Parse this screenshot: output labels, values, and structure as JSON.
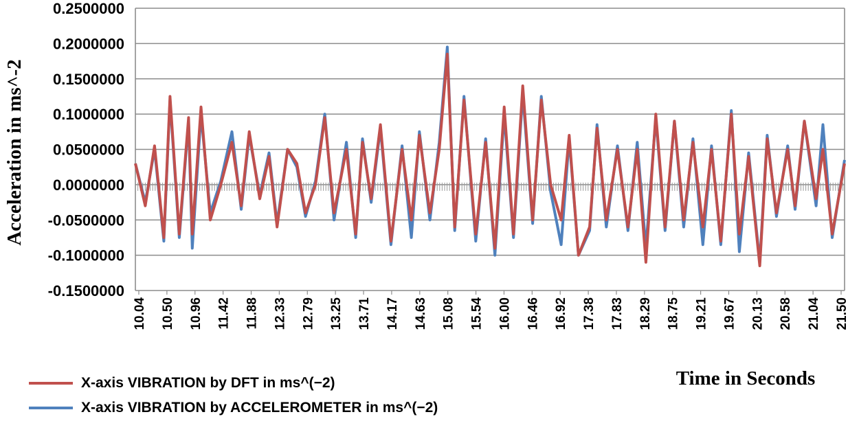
{
  "chart_data": {
    "type": "line",
    "xlabel": "Time in Seconds",
    "ylabel": "Acceleration in ms^-2",
    "ylim": [
      -0.15,
      0.25
    ],
    "xlim": [
      10.04,
      21.5
    ],
    "grid": "horizontal",
    "y_ticks": [
      "0.2500000",
      "0.2000000",
      "0.1500000",
      "0.1000000",
      "0.0500000",
      "0.0000000",
      "-0.0500000",
      "-0.1000000",
      "-0.1500000"
    ],
    "x_ticks": [
      "10.04",
      "10.50",
      "10.96",
      "11.42",
      "11.88",
      "12.33",
      "12.79",
      "13.25",
      "13.71",
      "14.17",
      "14.63",
      "15.08",
      "15.54",
      "16.00",
      "16.46",
      "16.92",
      "17.38",
      "17.83",
      "18.29",
      "18.75",
      "19.21",
      "19.67",
      "20.13",
      "20.58",
      "21.04",
      "21.50"
    ],
    "x": [
      10.04,
      10.2,
      10.35,
      10.5,
      10.6,
      10.75,
      10.9,
      10.96,
      11.1,
      11.25,
      11.42,
      11.6,
      11.75,
      11.88,
      12.05,
      12.2,
      12.33,
      12.5,
      12.65,
      12.79,
      12.95,
      13.1,
      13.25,
      13.45,
      13.6,
      13.71,
      13.85,
      14.0,
      14.17,
      14.35,
      14.5,
      14.63,
      14.8,
      14.95,
      15.08,
      15.2,
      15.35,
      15.54,
      15.7,
      15.85,
      16.0,
      16.15,
      16.3,
      16.46,
      16.6,
      16.75,
      16.92,
      17.05,
      17.2,
      17.38,
      17.5,
      17.65,
      17.83,
      18.0,
      18.15,
      18.29,
      18.45,
      18.6,
      18.75,
      18.9,
      19.05,
      19.21,
      19.35,
      19.5,
      19.67,
      19.8,
      19.95,
      20.13,
      20.25,
      20.4,
      20.58,
      20.7,
      20.85,
      21.04,
      21.15,
      21.3,
      21.5
    ],
    "series": [
      {
        "name": "X-axis VIBRATION by DFT in  ms^(−2)",
        "color": "#c0504d",
        "values": [
          0.03,
          -0.03,
          0.055,
          -0.075,
          0.125,
          -0.07,
          0.095,
          -0.07,
          0.11,
          -0.05,
          0.0,
          0.06,
          -0.03,
          0.075,
          -0.02,
          0.04,
          -0.06,
          0.05,
          0.03,
          -0.04,
          0.0,
          0.095,
          -0.04,
          0.05,
          -0.07,
          0.06,
          -0.02,
          0.085,
          -0.08,
          0.05,
          -0.05,
          0.07,
          -0.04,
          0.05,
          0.185,
          -0.06,
          0.12,
          -0.07,
          0.06,
          -0.09,
          0.11,
          -0.07,
          0.14,
          -0.05,
          0.12,
          0.0,
          -0.05,
          0.07,
          -0.1,
          -0.06,
          0.08,
          -0.05,
          0.05,
          -0.06,
          0.05,
          -0.11,
          0.1,
          -0.06,
          0.09,
          -0.05,
          0.06,
          -0.06,
          0.05,
          -0.08,
          0.1,
          -0.07,
          0.04,
          -0.115,
          0.065,
          -0.04,
          0.05,
          -0.03,
          0.09,
          -0.02,
          0.05,
          -0.07,
          0.03
        ]
      },
      {
        "name": "X-axis VIBRATION by ACCELEROMETER in ms^(−2)",
        "color": "#4f81bd",
        "values": [
          0.03,
          -0.025,
          0.05,
          -0.08,
          0.12,
          -0.075,
          0.09,
          -0.09,
          0.1,
          -0.04,
          0.005,
          0.075,
          -0.035,
          0.07,
          -0.015,
          0.045,
          -0.055,
          0.05,
          0.025,
          -0.045,
          0.005,
          0.1,
          -0.05,
          0.06,
          -0.075,
          0.065,
          -0.025,
          0.08,
          -0.085,
          0.055,
          -0.075,
          0.075,
          -0.05,
          0.06,
          0.195,
          -0.065,
          0.125,
          -0.08,
          0.065,
          -0.1,
          0.1,
          -0.075,
          0.13,
          -0.055,
          0.125,
          -0.01,
          -0.085,
          0.065,
          -0.1,
          -0.065,
          0.085,
          -0.06,
          0.055,
          -0.065,
          0.06,
          -0.09,
          0.095,
          -0.065,
          0.09,
          -0.06,
          0.065,
          -0.085,
          0.055,
          -0.085,
          0.105,
          -0.095,
          0.045,
          -0.11,
          0.07,
          -0.045,
          0.055,
          -0.035,
          0.09,
          -0.03,
          0.085,
          -0.075,
          0.035
        ]
      }
    ]
  }
}
